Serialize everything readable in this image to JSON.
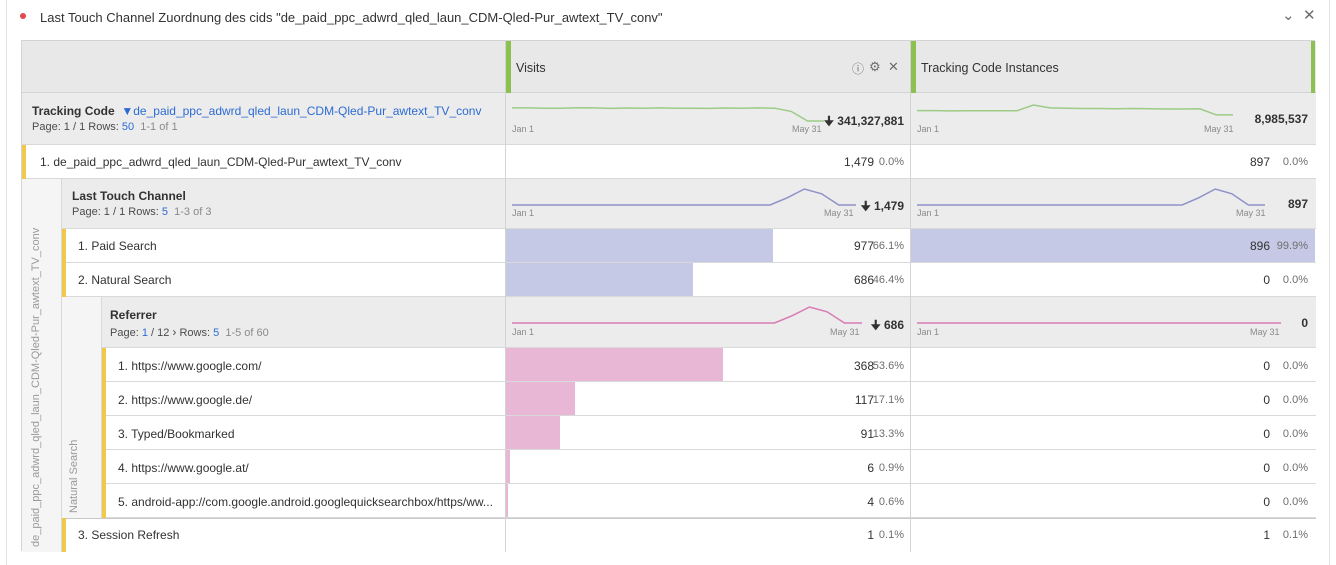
{
  "panel": {
    "title": "Last Touch Channel Zuordnung des cids \"de_paid_ppc_adwrd_qled_laun_CDM-Qled-Pur_awtext_TV_conv\"",
    "collapse_icon": "chevron-down-icon",
    "close_icon": "close-icon",
    "status_color": "#e34850"
  },
  "columns": {
    "visits": "Visits",
    "tracking": "Tracking Code Instances",
    "visits_icons": [
      "info-icon",
      "gear-icon",
      "close-icon"
    ]
  },
  "colors": {
    "blue_bar": "#c5c9e6",
    "pink_bar": "#e8b7d6",
    "green_line": "#9ccb84",
    "blue_line": "#8f92c9",
    "pink_line": "#d97ab3",
    "accent_green": "#8cc152",
    "row_marker": "#f2c84b"
  },
  "level1": {
    "dimension": "Tracking Code",
    "filter": "de_paid_ppc_adwrd_qled_laun_CDM-Qled-Pur_awtext_TV_conv",
    "page_prefix": "Page: 1 / 1  Rows: ",
    "rows_value": "50",
    "range": "1-1 of 1",
    "visits_total": "341,327,881",
    "tracking_total": "8,985,537",
    "axis_start": "Jan 1",
    "axis_end": "May 31",
    "visits_trend": [
      0.18,
      0.18,
      0.2,
      0.2,
      0.17,
      0.18,
      0.21,
      0.19,
      0.2,
      0.18,
      0.2,
      0.2,
      0.21,
      0.19,
      0.2,
      0.18,
      0.2,
      0.4,
      1.0,
      1.0
    ],
    "tracking_trend": [
      0.35,
      0.35,
      0.37,
      0.36,
      0.36,
      0.36,
      0.36,
      0.0,
      0.18,
      0.2,
      0.22,
      0.22,
      0.24,
      0.22,
      0.23,
      0.25,
      0.25,
      0.24,
      0.62,
      0.62
    ]
  },
  "item1": {
    "label": "1.  de_paid_ppc_adwrd_qled_laun_CDM-Qled-Pur_awtext_TV_conv",
    "visits": "1,479",
    "visits_pct": "0.0%",
    "tracking": "897",
    "tracking_pct": "0.0%"
  },
  "vertical_label_outer": "de_paid_ppc_adwrd_qled_laun_CDM-Qled-Pur_awtext_TV_conv",
  "level2": {
    "dimension": "Last Touch Channel",
    "page_prefix": "Page: 1 / 1  Rows: ",
    "rows_value": "5",
    "range": "1-3 of 3",
    "visits_total": "1,479",
    "tracking_total": "897",
    "axis_start": "Jan 1",
    "axis_end": "May 31",
    "visits_trend": [
      1,
      1,
      1,
      1,
      1,
      1,
      1,
      1,
      1,
      1,
      1,
      1,
      1,
      1,
      1,
      1,
      0.55,
      0.0,
      0.3,
      1,
      1
    ],
    "tracking_trend": [
      1,
      1,
      1,
      1,
      1,
      1,
      1,
      1,
      1,
      1,
      1,
      1,
      1,
      1,
      1,
      1,
      1,
      0.55,
      0.0,
      0.3,
      1,
      1
    ],
    "items": [
      {
        "label": "1.  Paid Search",
        "visits": "977",
        "visits_pct": "66.1%",
        "visits_frac": 0.661,
        "tracking": "896",
        "tracking_pct": "99.9%",
        "tracking_frac": 0.999
      },
      {
        "label": "2.  Natural Search",
        "visits": "686",
        "visits_pct": "46.4%",
        "visits_frac": 0.464,
        "tracking": "0",
        "tracking_pct": "0.0%",
        "tracking_frac": 0
      },
      {
        "label": "3.  Session Refresh",
        "visits": "1",
        "visits_pct": "0.1%",
        "visits_frac": 0.001,
        "tracking": "1",
        "tracking_pct": "0.1%",
        "tracking_frac": 0.001
      }
    ]
  },
  "vertical_label_inner": "Natural Search",
  "level3": {
    "dimension": "Referrer",
    "page_prefix": "Page: ",
    "page_current": "1",
    "page_of": " / 12 ",
    "next_icon": "chevron-right-icon",
    "rows_prefix": "Rows: ",
    "rows_value": "5",
    "range": "1-5 of 60",
    "visits_total": "686",
    "tracking_total": "0",
    "axis_start": "Jan 1",
    "axis_end": "May 31",
    "visits_trend": [
      1,
      1,
      1,
      1,
      1,
      1,
      1,
      1,
      1,
      1,
      1,
      1,
      1,
      1,
      1,
      1,
      0.55,
      0.0,
      0.3,
      1,
      1
    ],
    "tracking_trend": [
      1,
      1,
      1,
      1,
      1,
      1,
      1,
      1,
      1,
      1,
      1,
      1
    ],
    "items": [
      {
        "label": "1.  https://www.google.com/",
        "visits": "368",
        "visits_pct": "53.6%",
        "visits_frac": 0.536,
        "tracking": "0",
        "tracking_pct": "0.0%"
      },
      {
        "label": "2.  https://www.google.de/",
        "visits": "117",
        "visits_pct": "17.1%",
        "visits_frac": 0.171,
        "tracking": "0",
        "tracking_pct": "0.0%"
      },
      {
        "label": "3.  Typed/Bookmarked",
        "visits": "91",
        "visits_pct": "13.3%",
        "visits_frac": 0.133,
        "tracking": "0",
        "tracking_pct": "0.0%"
      },
      {
        "label": "4.  https://www.google.at/",
        "visits": "6",
        "visits_pct": "0.9%",
        "visits_frac": 0.009,
        "tracking": "0",
        "tracking_pct": "0.0%"
      },
      {
        "label": "5.  android-app://com.google.android.googlequicksearchbox/https/ww...",
        "visits": "4",
        "visits_pct": "0.6%",
        "visits_frac": 0.006,
        "tracking": "0",
        "tracking_pct": "0.0%"
      }
    ]
  }
}
